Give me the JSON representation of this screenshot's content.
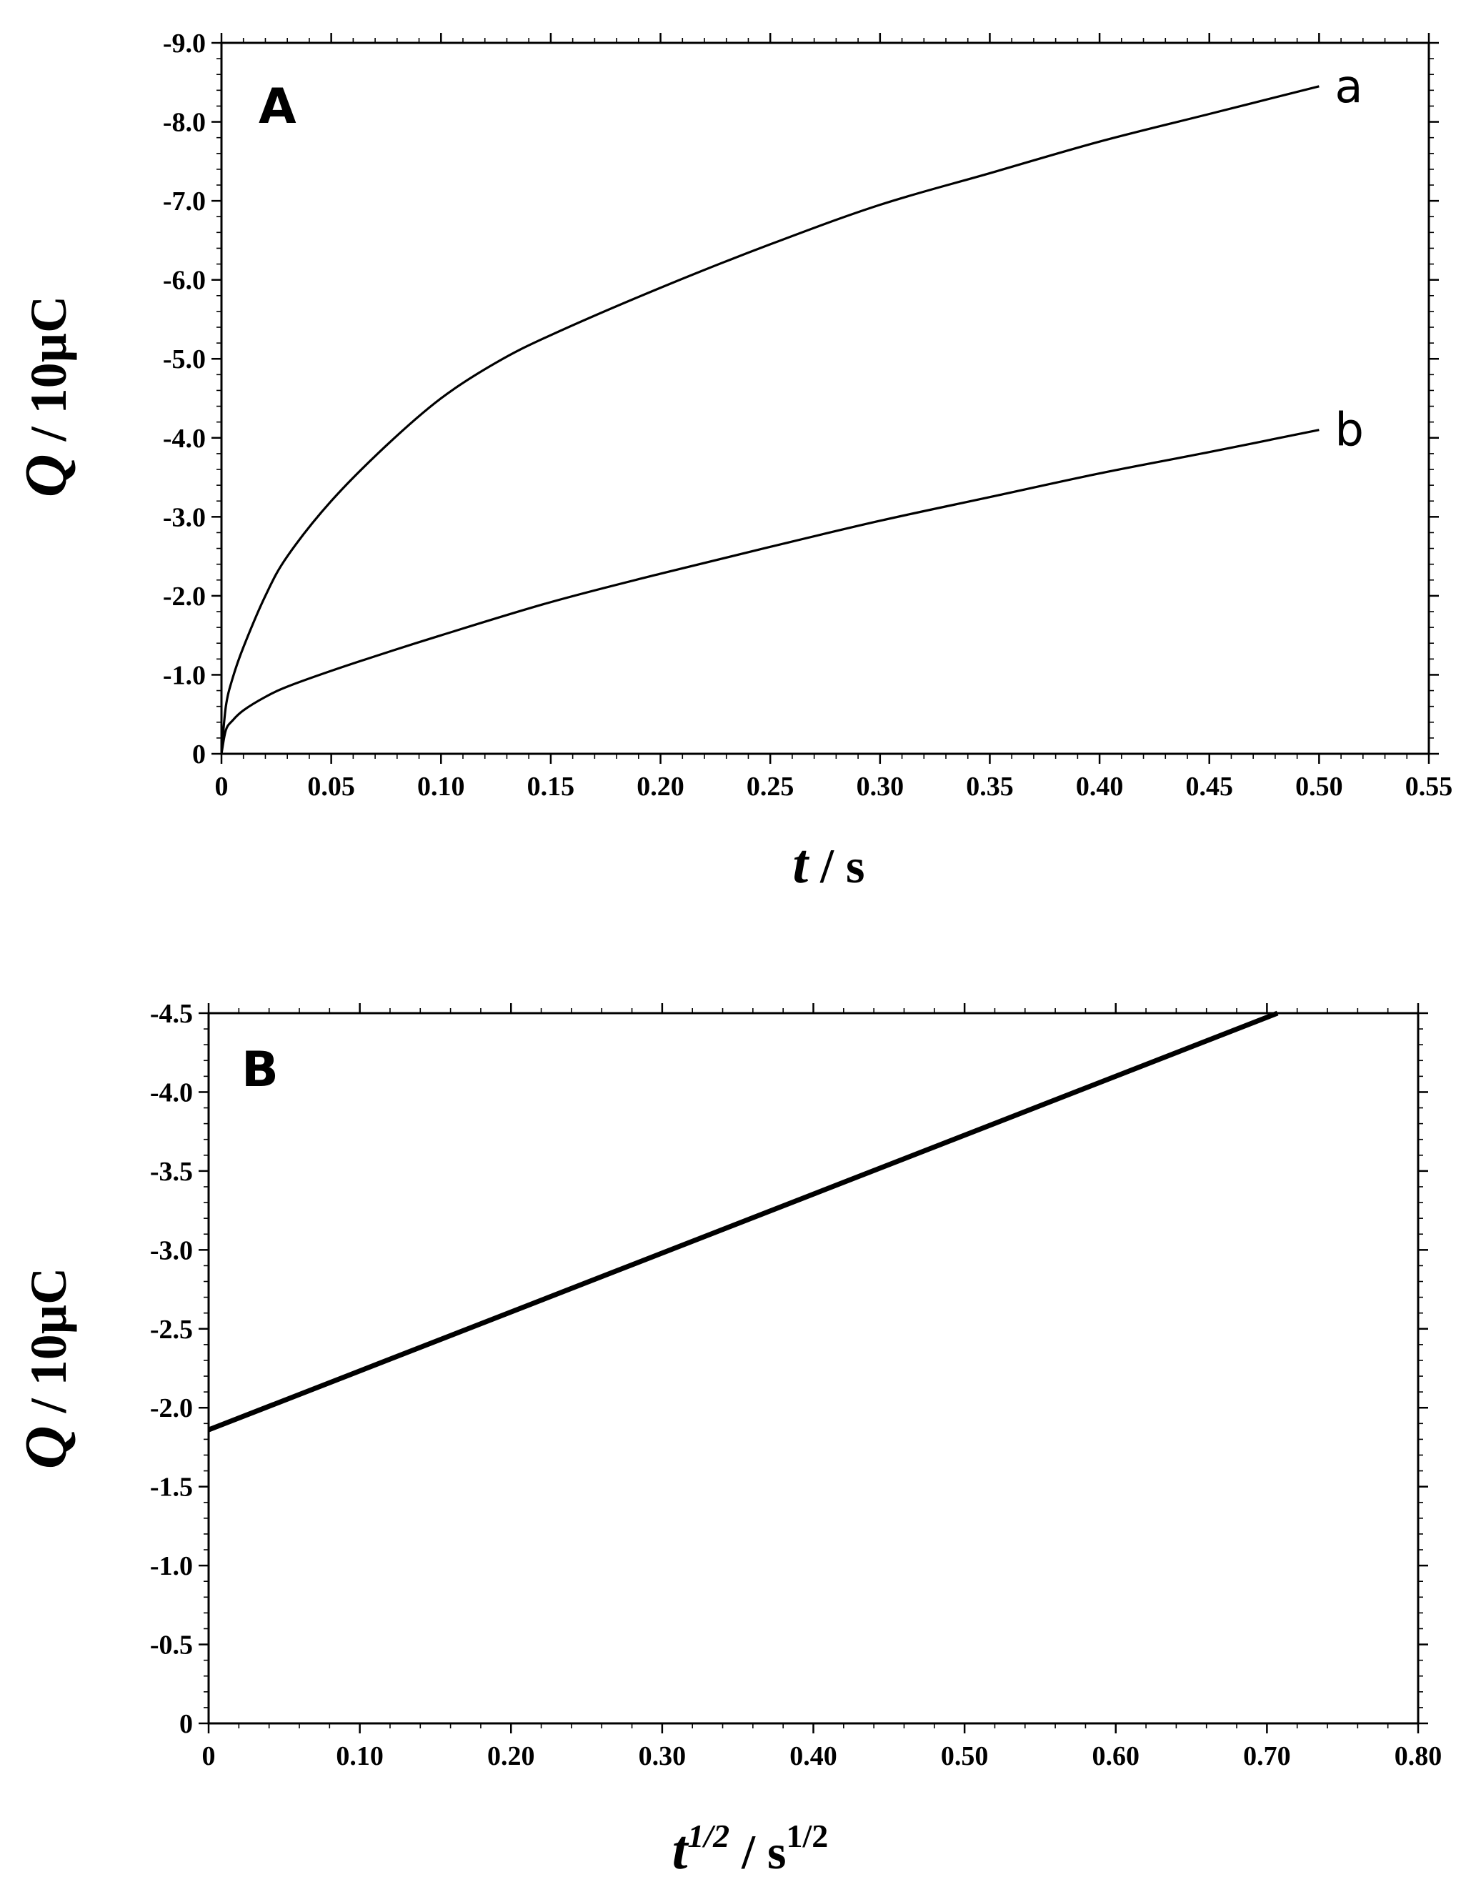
{
  "chart_data": [
    {
      "type": "line",
      "panel_label": "A",
      "xlabel": {
        "var": "t",
        "unit": " / s"
      },
      "ylabel": {
        "var": "Q",
        "unit": " / 10µC"
      },
      "xlim": [
        0,
        0.55
      ],
      "ylim": [
        0,
        -9.0
      ],
      "xticks": [
        0,
        0.05,
        0.1,
        0.15,
        0.2,
        0.25,
        0.3,
        0.35,
        0.4,
        0.45,
        0.5,
        0.55
      ],
      "xtick_labels": [
        "0",
        "0.05",
        "0.10",
        "0.15",
        "0.20",
        "0.25",
        "0.30",
        "0.35",
        "0.40",
        "0.45",
        "0.50",
        "0.55"
      ],
      "yticks": [
        0,
        -1.0,
        -2.0,
        -3.0,
        -4.0,
        -5.0,
        -6.0,
        -7.0,
        -8.0,
        -9.0
      ],
      "ytick_labels": [
        "0",
        "-1.0",
        "-2.0",
        "-3.0",
        "-4.0",
        "-5.0",
        "-6.0",
        "-7.0",
        "-8.0",
        "-9.0"
      ],
      "grid": false,
      "series": [
        {
          "name": "a",
          "x": [
            0,
            0.002,
            0.005,
            0.01,
            0.02,
            0.03,
            0.05,
            0.075,
            0.1,
            0.125,
            0.15,
            0.2,
            0.25,
            0.3,
            0.35,
            0.4,
            0.45,
            0.5
          ],
          "y": [
            0,
            -0.6,
            -0.95,
            -1.35,
            -2.0,
            -2.5,
            -3.2,
            -3.9,
            -4.5,
            -4.95,
            -5.3,
            -5.9,
            -6.45,
            -6.95,
            -7.35,
            -7.75,
            -8.1,
            -8.45
          ]
        },
        {
          "name": "b",
          "x": [
            0,
            0.002,
            0.005,
            0.01,
            0.02,
            0.03,
            0.05,
            0.075,
            0.1,
            0.15,
            0.2,
            0.25,
            0.3,
            0.35,
            0.4,
            0.45,
            0.5
          ],
          "y": [
            0,
            -0.3,
            -0.42,
            -0.55,
            -0.72,
            -0.85,
            -1.05,
            -1.28,
            -1.5,
            -1.92,
            -2.28,
            -2.62,
            -2.95,
            -3.25,
            -3.55,
            -3.82,
            -4.1
          ]
        }
      ]
    },
    {
      "type": "line",
      "panel_label": "B",
      "xlabel": {
        "var": "t",
        "var_sup": "1/2",
        "unit": " / s",
        "unit_sup": "1/2"
      },
      "ylabel": {
        "var": "Q",
        "unit": " / 10µC"
      },
      "xlim": [
        0,
        0.8
      ],
      "ylim": [
        0,
        -4.5
      ],
      "xticks": [
        0,
        0.1,
        0.2,
        0.3,
        0.4,
        0.5,
        0.6,
        0.7,
        0.8
      ],
      "xtick_labels": [
        "0",
        "0.10",
        "0.20",
        "0.30",
        "0.40",
        "0.50",
        "0.60",
        "0.70",
        "0.80"
      ],
      "yticks": [
        0,
        -0.5,
        -1.0,
        -1.5,
        -2.0,
        -2.5,
        -3.0,
        -3.5,
        -4.0,
        -4.5
      ],
      "ytick_labels": [
        "0",
        "-0.5",
        "-1.0",
        "-1.5",
        "-2.0",
        "-2.5",
        "-3.0",
        "-3.5",
        "-4.0",
        "-4.5"
      ],
      "grid": false,
      "series": [
        {
          "name": "",
          "x": [
            0,
            0.707
          ],
          "y": [
            -1.86,
            -4.5
          ]
        }
      ]
    }
  ]
}
